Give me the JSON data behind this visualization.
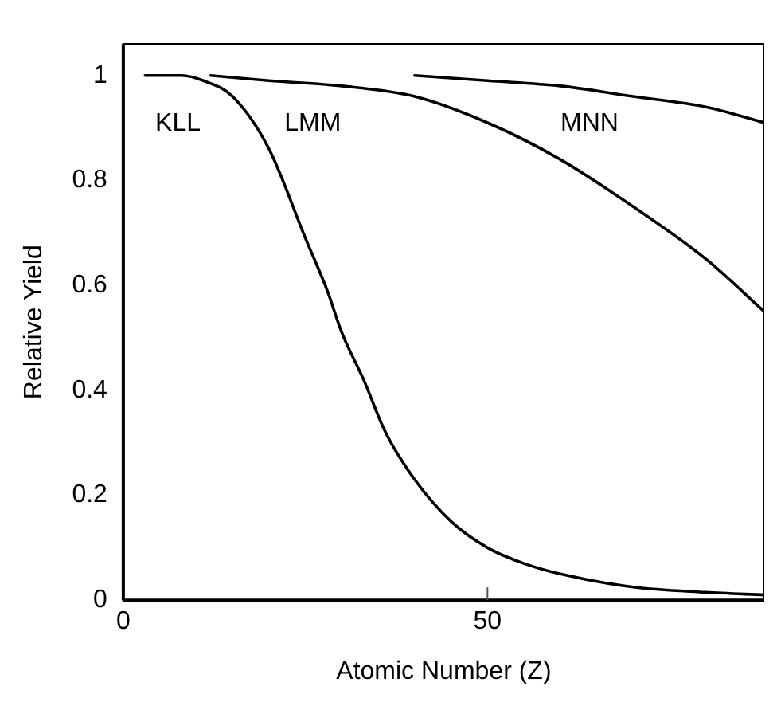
{
  "chart_data": {
    "type": "line",
    "xlabel": "Atomic Number (Z)",
    "ylabel": "Relative Yield",
    "xlim": [
      0,
      88
    ],
    "ylim": [
      0,
      1.06
    ],
    "xticks": [
      0,
      50
    ],
    "yticks": [
      0,
      0.2,
      0.4,
      0.6,
      0.8,
      1
    ],
    "grid": false,
    "legend": false,
    "marker": "none",
    "line_style": "solid",
    "series": [
      {
        "name": "KLL",
        "color": "#000000",
        "x": [
          3,
          8,
          11,
          15,
          20,
          25,
          28,
          30,
          33,
          36,
          40,
          45,
          50,
          55,
          60,
          70,
          80,
          88
        ],
        "values": [
          1.0,
          1.0,
          0.99,
          0.96,
          0.86,
          0.69,
          0.59,
          0.51,
          0.42,
          0.32,
          0.23,
          0.15,
          0.1,
          0.07,
          0.05,
          0.025,
          0.015,
          0.01
        ]
      },
      {
        "name": "LMM",
        "color": "#000000",
        "x": [
          12,
          20,
          30,
          40,
          50,
          60,
          70,
          80,
          88
        ],
        "values": [
          1.0,
          0.99,
          0.98,
          0.96,
          0.91,
          0.84,
          0.75,
          0.65,
          0.55
        ]
      },
      {
        "name": "MNN",
        "color": "#000000",
        "x": [
          40,
          50,
          60,
          70,
          80,
          88
        ],
        "values": [
          1.0,
          0.99,
          0.98,
          0.96,
          0.94,
          0.91
        ]
      }
    ]
  }
}
